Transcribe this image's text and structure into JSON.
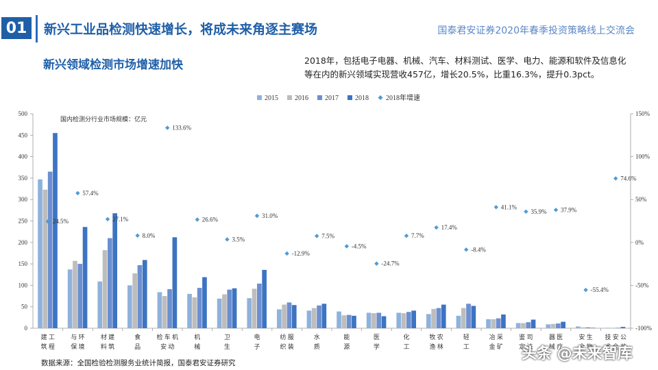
{
  "header": {
    "number": "01",
    "title": "新兴工业品检测快速增长，将成未来角逐主赛场",
    "brand": "国泰君安证券2020年春季投资策略线上交流会"
  },
  "section": {
    "subtitle": "新兴领域检测市场增速加快",
    "description": "2018年，包括电子电器、机械、汽车、材料测试、医学、电力、能源和软件及信息化等在内的新兴领域实现营收457亿，增长20.5%，比重16.3%，提升0.3pct。"
  },
  "footer": {
    "source": "数据来源：全国检验检测服务业统计简报，国泰君安证券研究",
    "watermark": "头条 @未来智库"
  },
  "colors": {
    "s2015": "#8fb2dc",
    "s2016": "#bdbdbd",
    "s2017": "#6b8fd0",
    "s2018": "#3d74c2",
    "growth": "#4e9bd6",
    "brand": "#1f5fa8"
  },
  "chart_data": {
    "type": "bar",
    "annotation": "国内检测分行业市场规模：亿元",
    "categories": [
      [
        "工",
        "程",
        "建",
        "筑"
      ],
      [
        "环",
        "境",
        "与",
        "保"
      ],
      [
        "建",
        "筑",
        "材",
        "料"
      ],
      [
        "食",
        "品"
      ],
      [
        "机",
        "动",
        "车",
        "安",
        "检"
      ],
      [
        "机",
        "械"
      ],
      [
        "卫",
        "生"
      ],
      [
        "电",
        "子"
      ],
      [
        "服",
        "装",
        "纺",
        "织"
      ],
      [
        "水",
        "质"
      ],
      [
        "能",
        "源"
      ],
      [
        "医",
        "学"
      ],
      [
        "化",
        "工"
      ],
      [
        "农",
        "林",
        "牧",
        "渔"
      ],
      [
        "轻",
        "工"
      ],
      [
        "采",
        "矿",
        "冶",
        "金"
      ],
      [
        "司",
        "法",
        "鉴",
        "定"
      ],
      [
        "医",
        "疗",
        "器",
        "械"
      ],
      [
        "生",
        "物",
        "安",
        "全"
      ],
      [
        "公",
        "共",
        "安",
        "全",
        "技",
        "术"
      ]
    ],
    "series": [
      {
        "name": "2015",
        "values": [
          347,
          137,
          109,
          100,
          84,
          80,
          69,
          70,
          44,
          41,
          39,
          36,
          36,
          33,
          29,
          21,
          12,
          9,
          4,
          1
        ]
      },
      {
        "name": "2016",
        "values": [
          323,
          157,
          182,
          128,
          75,
          72,
          79,
          92,
          55,
          47,
          30,
          35,
          35,
          45,
          47,
          21,
          12,
          10,
          2,
          1
        ]
      },
      {
        "name": "2017",
        "values": [
          365,
          150,
          210,
          147,
          91,
          94,
          90,
          104,
          60,
          53,
          31,
          36,
          38,
          47,
          57,
          23,
          14,
          11,
          2,
          1
        ]
      },
      {
        "name": "2018",
        "values": [
          455,
          236,
          268,
          159,
          212,
          119,
          93,
          136,
          54,
          57,
          29,
          28,
          41,
          55,
          52,
          32,
          20,
          15,
          1,
          3
        ]
      }
    ],
    "growth": {
      "name": "2018年增速",
      "values": [
        24.5,
        57.4,
        27.1,
        8.0,
        133.6,
        26.6,
        3.5,
        31.0,
        -12.9,
        7.5,
        -4.5,
        -24.7,
        7.7,
        17.4,
        -8.4,
        41.1,
        35.9,
        37.9,
        -55.4,
        74.6
      ],
      "labels": [
        "24.5%",
        "57.4%",
        "27.1%",
        "8.0%",
        "133.6%",
        "26.6%",
        "3.5%",
        "31.0%",
        "-12.9%",
        "7.5%",
        "-4.5%",
        "-24.7%",
        "7.7%",
        "17.4%",
        "-8.4%",
        "41.1%",
        "35.9%",
        "37.9%",
        "-55.4%",
        "74.6%"
      ]
    },
    "ylim": [
      0,
      500
    ],
    "yticks": [
      "0",
      "50",
      "100",
      "150",
      "200",
      "250",
      "300",
      "350",
      "400",
      "450",
      "500"
    ],
    "y2lim": [
      -100,
      150
    ],
    "y2ticks": [
      "-100%",
      "-50%",
      "0%",
      "50%",
      "100%",
      "150%"
    ],
    "legend": [
      "2015",
      "2016",
      "2017",
      "2018",
      "2018年增速"
    ],
    "legend_position": "top",
    "grid": false
  }
}
